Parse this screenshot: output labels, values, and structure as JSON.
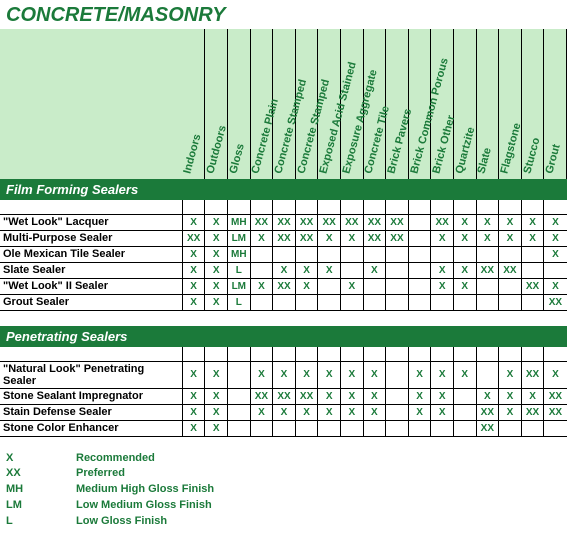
{
  "title": "CONCRETE/MASONRY",
  "columns": [
    "Indoors",
    "Outdoors",
    "Gloss",
    "Concrete Plain",
    "Concrete Stamped",
    "Concrete Stamped",
    "Exposed Acid Stained",
    "Exposure Aggregate",
    "Concrete Tile",
    "Brick Pavers",
    "Brick Common Porous",
    "Brick Other",
    "Quartzite",
    "Slate",
    "Flagstone",
    "Stucco",
    "Grout"
  ],
  "sections": [
    {
      "name": "Film Forming Sealers",
      "rows": [
        {
          "label": "\"Wet Look\" Lacquer",
          "cells": [
            "X",
            "X",
            "MH",
            "XX",
            "XX",
            "XX",
            "XX",
            "XX",
            "XX",
            "XX",
            "",
            "XX",
            "X",
            "X",
            "X",
            "X",
            "X"
          ]
        },
        {
          "label": "Multi-Purpose Sealer",
          "cells": [
            "XX",
            "X",
            "LM",
            "X",
            "XX",
            "XX",
            "X",
            "X",
            "XX",
            "XX",
            "",
            "X",
            "X",
            "X",
            "X",
            "X",
            "X"
          ]
        },
        {
          "label": "Ole Mexican Tile Sealer",
          "cells": [
            "X",
            "X",
            "MH",
            "",
            "",
            "",
            "",
            "",
            "",
            "",
            "",
            "",
            "",
            "",
            "",
            "",
            "X"
          ]
        },
        {
          "label": "Slate Sealer",
          "cells": [
            "X",
            "X",
            "L",
            "",
            "X",
            "X",
            "X",
            "",
            "X",
            "",
            "",
            "X",
            "X",
            "XX",
            "XX",
            "",
            ""
          ]
        },
        {
          "label": "\"Wet Look\" II Sealer",
          "cells": [
            "X",
            "X",
            "LM",
            "X",
            "XX",
            "X",
            "",
            "X",
            "",
            "",
            "",
            "X",
            "X",
            "",
            "",
            "XX",
            "X"
          ]
        },
        {
          "label": "Grout Sealer",
          "cells": [
            "X",
            "X",
            "L",
            "",
            "",
            "",
            "",
            "",
            "",
            "",
            "",
            "",
            "",
            "",
            "",
            "",
            "XX"
          ]
        }
      ]
    },
    {
      "name": "Penetrating Sealers",
      "rows": [
        {
          "label": "\"Natural Look\" Penetrating Sealer",
          "cells": [
            "X",
            "X",
            "",
            "X",
            "X",
            "X",
            "X",
            "X",
            "X",
            "",
            "X",
            "X",
            "X",
            "",
            "X",
            "XX",
            "X"
          ]
        },
        {
          "label": "Stone Sealant Impregnator",
          "cells": [
            "X",
            "X",
            "",
            "XX",
            "XX",
            "XX",
            "X",
            "X",
            "X",
            "",
            "X",
            "X",
            "",
            "X",
            "X",
            "X",
            "XX"
          ]
        },
        {
          "label": "Stain Defense Sealer",
          "cells": [
            "X",
            "X",
            "",
            "X",
            "X",
            "X",
            "X",
            "X",
            "X",
            "",
            "X",
            "X",
            "",
            "XX",
            "X",
            "XX",
            "XX"
          ]
        },
        {
          "label": "Stone Color Enhancer",
          "cells": [
            "X",
            "X",
            "",
            "",
            "",
            "",
            "",
            "",
            "",
            "",
            "",
            "",
            "",
            "XX",
            "",
            "",
            ""
          ]
        }
      ]
    }
  ],
  "legend": [
    {
      "sym": "X",
      "text": "Recommended"
    },
    {
      "sym": "XX",
      "text": "Preferred"
    },
    {
      "sym": "MH",
      "text": "Medium High Gloss Finish"
    },
    {
      "sym": "LM",
      "text": "Low Medium Gloss Finish"
    },
    {
      "sym": "L",
      "text": "Low Gloss Finish"
    }
  ],
  "colors": {
    "brand_green": "#1b7a3a",
    "header_bg": "#c9ecc9",
    "grid": "#000000",
    "white": "#ffffff"
  },
  "fontsizes": {
    "title_pt": 20,
    "section_pt": 13,
    "body_pt": 11,
    "cell_pt": 10
  }
}
